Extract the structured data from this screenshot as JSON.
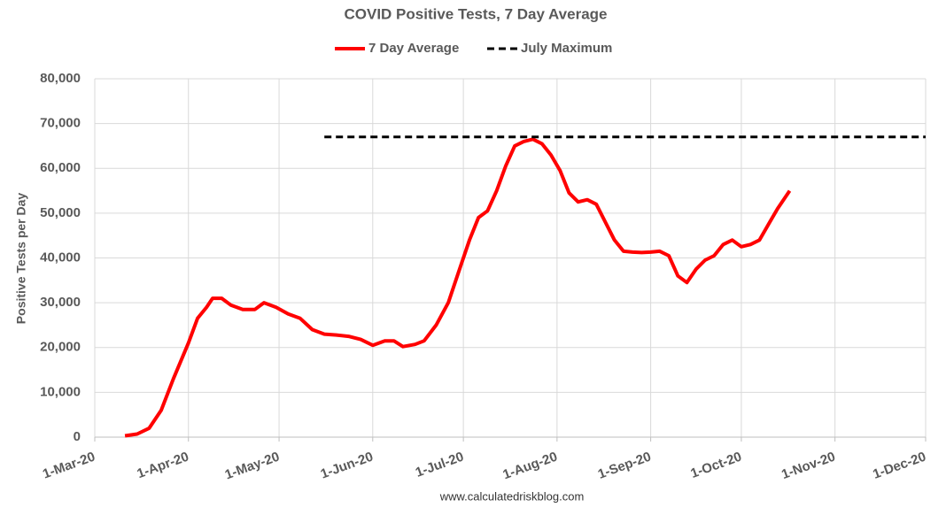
{
  "chart_data": {
    "type": "line",
    "title": "COVID Positive Tests, 7 Day Average",
    "y_label": "Positive Tests per Day",
    "source": "www.calculatedriskblog.com",
    "grid": true,
    "legend": "top",
    "xlim": [
      "2020-03-01",
      "2020-12-01"
    ],
    "xticks": [
      {
        "value": "2020-03-01",
        "label": "1-Mar-20"
      },
      {
        "value": "2020-04-01",
        "label": "1-Apr-20"
      },
      {
        "value": "2020-05-01",
        "label": "1-May-20"
      },
      {
        "value": "2020-06-01",
        "label": "1-Jun-20"
      },
      {
        "value": "2020-07-01",
        "label": "1-Jul-20"
      },
      {
        "value": "2020-08-01",
        "label": "1-Aug-20"
      },
      {
        "value": "2020-09-01",
        "label": "1-Sep-20"
      },
      {
        "value": "2020-10-01",
        "label": "1-Oct-20"
      },
      {
        "value": "2020-11-01",
        "label": "1-Nov-20"
      },
      {
        "value": "2020-12-01",
        "label": "1-Dec-20"
      }
    ],
    "ylim": [
      0,
      80000
    ],
    "yticks": [
      0,
      {
        "value": 10000,
        "label": "10,000"
      },
      {
        "value": 20000,
        "label": "20,000"
      },
      {
        "value": 30000,
        "label": "30,000"
      },
      {
        "value": 40000,
        "label": "40,000"
      },
      {
        "value": 50000,
        "label": "50,000"
      },
      {
        "value": 60000,
        "label": "60,000"
      },
      {
        "value": 70000,
        "label": "70,000"
      },
      {
        "value": 80000,
        "label": "80,000"
      }
    ],
    "series": [
      {
        "name": "7 Day Average",
        "color": "#ff0000",
        "dash": "solid",
        "x": [
          "2020-03-11",
          "2020-03-15",
          "2020-03-19",
          "2020-03-23",
          "2020-03-27",
          "2020-04-01",
          "2020-04-04",
          "2020-04-07",
          "2020-04-09",
          "2020-04-12",
          "2020-04-15",
          "2020-04-19",
          "2020-04-23",
          "2020-04-26",
          "2020-04-30",
          "2020-05-04",
          "2020-05-08",
          "2020-05-12",
          "2020-05-16",
          "2020-05-20",
          "2020-05-24",
          "2020-05-28",
          "2020-06-01",
          "2020-06-05",
          "2020-06-08",
          "2020-06-11",
          "2020-06-15",
          "2020-06-18",
          "2020-06-22",
          "2020-06-26",
          "2020-06-30",
          "2020-07-03",
          "2020-07-06",
          "2020-07-09",
          "2020-07-12",
          "2020-07-15",
          "2020-07-18",
          "2020-07-21",
          "2020-07-24",
          "2020-07-27",
          "2020-07-30",
          "2020-08-02",
          "2020-08-05",
          "2020-08-08",
          "2020-08-11",
          "2020-08-14",
          "2020-08-17",
          "2020-08-20",
          "2020-08-23",
          "2020-08-26",
          "2020-08-29",
          "2020-09-01",
          "2020-09-04",
          "2020-09-07",
          "2020-09-10",
          "2020-09-13",
          "2020-09-16",
          "2020-09-19",
          "2020-09-22",
          "2020-09-25",
          "2020-09-28",
          "2020-10-01",
          "2020-10-04",
          "2020-10-07",
          "2020-10-10",
          "2020-10-13",
          "2020-10-17"
        ],
        "values": [
          300,
          700,
          2000,
          6000,
          13000,
          21000,
          26500,
          29000,
          31000,
          31000,
          29500,
          28500,
          28500,
          30000,
          29000,
          27500,
          26500,
          24000,
          23000,
          22800,
          22500,
          21800,
          20500,
          21500,
          21500,
          20200,
          20700,
          21500,
          25000,
          30000,
          38000,
          44000,
          49000,
          50500,
          55000,
          60500,
          65000,
          66000,
          66500,
          65500,
          63000,
          59500,
          54500,
          52500,
          53000,
          52000,
          48000,
          44000,
          41500,
          41300,
          41200,
          41300,
          41500,
          40500,
          36000,
          34500,
          37500,
          39500,
          40500,
          43000,
          44000,
          42500,
          43000,
          44000,
          47500,
          51000,
          55000
        ]
      },
      {
        "name": "July Maximum",
        "color": "#000000",
        "dash": "dashed",
        "x": [
          "2020-05-16",
          "2020-12-01"
        ],
        "values": [
          67000,
          67000
        ]
      }
    ]
  }
}
